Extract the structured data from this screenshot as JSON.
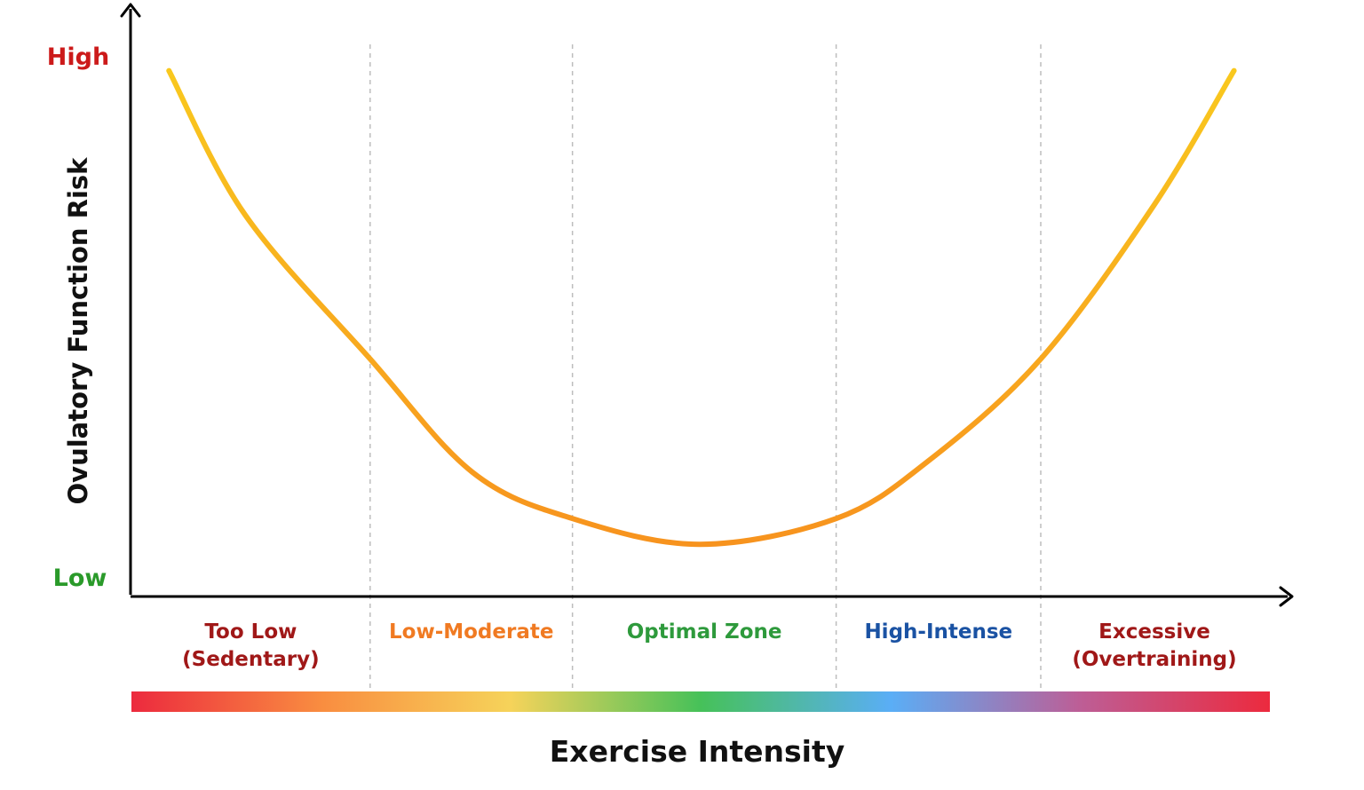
{
  "chart_data": {
    "type": "line",
    "title": "",
    "xlabel": "Exercise Intensity",
    "ylabel": "Ovulatory Function Risk",
    "y_tick_labels": [
      {
        "text": "High",
        "color": "#cc1a1a"
      },
      {
        "text": "Low",
        "color": "#2a9a2a"
      }
    ],
    "ylim": [
      0,
      1
    ],
    "xlim": [
      0,
      1
    ],
    "grid": false,
    "legend": "none",
    "zones": [
      {
        "line1": "Too Low",
        "line2": "(Sedentary)",
        "color": "#a01818",
        "start": 0.0,
        "end": 0.21
      },
      {
        "line1": "Low-Moderate",
        "line2": "",
        "color": "#f07a22",
        "start": 0.21,
        "end": 0.388
      },
      {
        "line1": "Optimal Zone",
        "line2": "",
        "color": "#2e9a3c",
        "start": 0.388,
        "end": 0.62
      },
      {
        "line1": "High-Intense",
        "line2": "",
        "color": "#1a52a3",
        "start": 0.62,
        "end": 0.8
      },
      {
        "line1": "Excessive",
        "line2": "(Overtraining)",
        "color": "#a01818",
        "start": 0.8,
        "end": 1.0
      }
    ],
    "zone_boundaries": [
      0.21,
      0.388,
      0.62,
      0.8
    ],
    "series": [
      {
        "x": [
          0.033,
          0.1,
          0.21,
          0.3,
          0.388,
          0.5,
          0.62,
          0.7,
          0.8,
          0.9,
          0.97
        ],
        "values": [
          0.98,
          0.7,
          0.42,
          0.2,
          0.11,
          0.06,
          0.11,
          0.22,
          0.42,
          0.72,
          0.98
        ],
        "color_start": "#f9c81e",
        "color_end": "#f7931e"
      }
    ],
    "intensity_bar_colors": [
      "#ec2a3e",
      "#f98d40",
      "#f6d35a",
      "#46c159",
      "#5aaef6",
      "#bd5e96",
      "#ec2a3e"
    ]
  }
}
